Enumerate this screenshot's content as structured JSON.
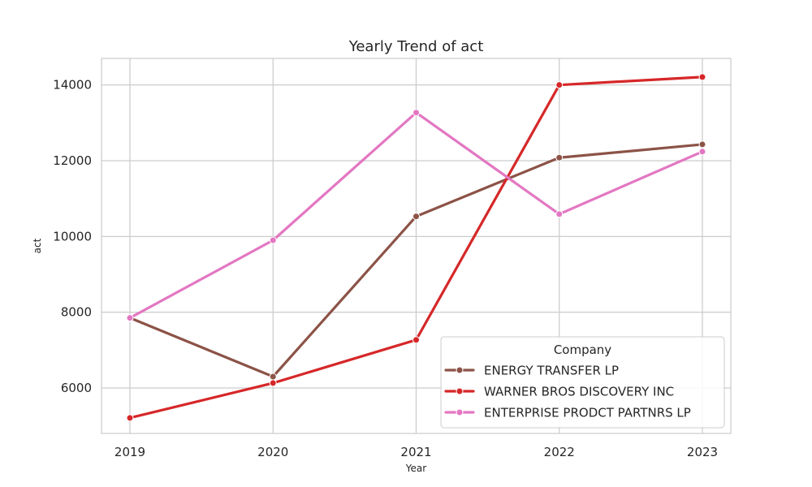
{
  "chart_data": {
    "type": "line",
    "title": "Yearly Trend of act",
    "xlabel": "Year",
    "ylabel": "act",
    "x": [
      2019,
      2020,
      2021,
      2022,
      2023
    ],
    "x_tick_labels": [
      "2019",
      "2020",
      "2021",
      "2022",
      "2023"
    ],
    "y_ticks": [
      6000,
      8000,
      10000,
      12000,
      14000
    ],
    "y_tick_labels": [
      "6000",
      "8000",
      "10000",
      "12000",
      "14000"
    ],
    "ylim": [
      4800,
      14700
    ],
    "grid": true,
    "legend_title": "Company",
    "legend_position": "bottom-right",
    "series": [
      {
        "name": "ENERGY TRANSFER LP",
        "color": "#8c5347",
        "values": [
          7850,
          6300,
          10530,
          12080,
          12430
        ]
      },
      {
        "name": "WARNER BROS DISCOVERY INC",
        "color": "#d62728",
        "values": [
          5210,
          6130,
          7270,
          14000,
          14210
        ]
      },
      {
        "name": "ENTERPRISE PRODCT PARTNRS LP",
        "color": "#e377c2",
        "values": [
          7850,
          9900,
          13270,
          10590,
          12240
        ]
      }
    ]
  }
}
